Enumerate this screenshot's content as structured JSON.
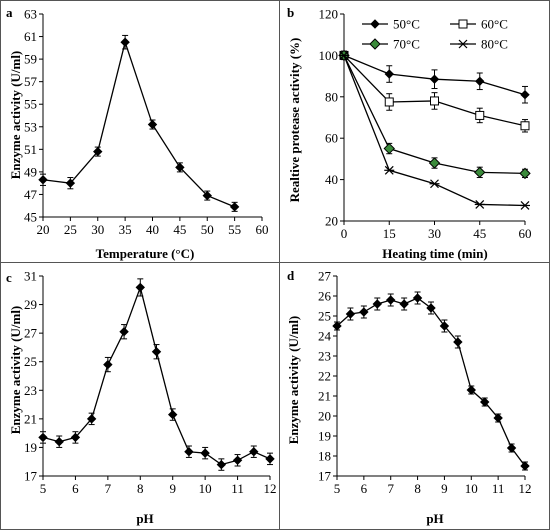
{
  "chart_data": [
    {
      "panel": "a",
      "type": "line",
      "xlabel": "Temperature (°C)",
      "ylabel": "Enzyme activity  (U/ml)",
      "xlim": [
        20,
        60
      ],
      "ylim": [
        45,
        63
      ],
      "xticks": [
        20,
        25,
        30,
        35,
        40,
        45,
        50,
        55,
        60
      ],
      "yticks": [
        45,
        47,
        49,
        51,
        53,
        55,
        57,
        59,
        61,
        63
      ],
      "series": [
        {
          "marker": "diamond",
          "x": [
            20,
            25,
            30,
            35,
            40,
            45,
            50,
            55
          ],
          "values": [
            48.3,
            48.0,
            50.8,
            60.5,
            53.2,
            49.4,
            46.9,
            45.9
          ],
          "errors": [
            0.5,
            0.5,
            0.4,
            0.6,
            0.4,
            0.4,
            0.4,
            0.4
          ]
        }
      ]
    },
    {
      "panel": "b",
      "type": "line",
      "xlabel": "Heating time (min)",
      "ylabel": "Realtive protease activity (%)",
      "xlim": [
        0,
        60
      ],
      "ylim": [
        20,
        120
      ],
      "xticks": [
        0,
        15,
        30,
        45,
        60
      ],
      "yticks": [
        20,
        40,
        60,
        80,
        100,
        120
      ],
      "series": [
        {
          "name": "50°C",
          "marker": "diamond",
          "x": [
            0,
            15,
            30,
            45,
            60
          ],
          "values": [
            100,
            91,
            88.5,
            87.5,
            81
          ],
          "errors": [
            2,
            4,
            4.5,
            4,
            4
          ]
        },
        {
          "name": "60°C",
          "marker": "square-open",
          "x": [
            0,
            15,
            30,
            45,
            60
          ],
          "values": [
            100,
            77.5,
            78,
            71,
            66
          ],
          "errors": [
            2,
            4,
            4,
            3.5,
            3
          ]
        },
        {
          "name": "70°C",
          "marker": "diamond-green",
          "x": [
            0,
            15,
            30,
            45,
            60
          ],
          "values": [
            100,
            55,
            48,
            43.5,
            43
          ],
          "errors": [
            2,
            2.5,
            2.5,
            2.5,
            2
          ]
        },
        {
          "name": "80°C",
          "marker": "asterisk",
          "x": [
            0,
            15,
            30,
            45,
            60
          ],
          "values": [
            100,
            44.5,
            38,
            28,
            27.5
          ],
          "errors": [
            0,
            0,
            0,
            0,
            0
          ]
        }
      ]
    },
    {
      "panel": "c",
      "type": "line",
      "xlabel": "pH",
      "ylabel": "Enzyme activity  (U/ml)",
      "xlim": [
        5,
        12
      ],
      "ylim": [
        17,
        31
      ],
      "xticks": [
        5,
        6,
        7,
        8,
        9,
        10,
        11,
        12
      ],
      "yticks": [
        17,
        19,
        21,
        23,
        25,
        27,
        29,
        31
      ],
      "series": [
        {
          "marker": "diamond",
          "x": [
            5,
            5.5,
            6,
            6.5,
            7,
            7.5,
            8,
            8.5,
            9,
            9.5,
            10,
            10.5,
            11,
            11.5,
            12
          ],
          "values": [
            19.7,
            19.4,
            19.7,
            21.0,
            24.8,
            27.1,
            30.2,
            25.7,
            21.3,
            18.7,
            18.6,
            17.8,
            18.1,
            18.7,
            18.2
          ],
          "errors": [
            0.4,
            0.4,
            0.4,
            0.4,
            0.5,
            0.5,
            0.6,
            0.5,
            0.4,
            0.4,
            0.4,
            0.4,
            0.4,
            0.4,
            0.4
          ]
        }
      ]
    },
    {
      "panel": "d",
      "type": "line",
      "xlabel": "pH",
      "ylabel": "Enzyme activity  (U/ml)",
      "xlim": [
        5,
        12
      ],
      "ylim": [
        17,
        27
      ],
      "xticks": [
        5,
        6,
        7,
        8,
        9,
        10,
        11,
        12
      ],
      "yticks": [
        17,
        18,
        19,
        20,
        21,
        22,
        23,
        24,
        25,
        26,
        27
      ],
      "series": [
        {
          "marker": "diamond",
          "x": [
            5,
            5.5,
            6,
            6.5,
            7,
            7.5,
            8,
            8.5,
            9,
            9.5,
            10,
            10.5,
            11,
            11.5,
            12
          ],
          "values": [
            24.5,
            25.1,
            25.2,
            25.6,
            25.8,
            25.6,
            25.9,
            25.4,
            24.5,
            23.7,
            21.3,
            20.7,
            19.9,
            18.4,
            17.5
          ],
          "errors": [
            0.2,
            0.3,
            0.3,
            0.3,
            0.3,
            0.3,
            0.3,
            0.3,
            0.3,
            0.3,
            0.2,
            0.2,
            0.2,
            0.2,
            0.2
          ]
        }
      ]
    }
  ],
  "colors": {
    "axis": "#000000",
    "series": "#000000",
    "green_marker": "#3a8a3a",
    "border": "#555555"
  }
}
